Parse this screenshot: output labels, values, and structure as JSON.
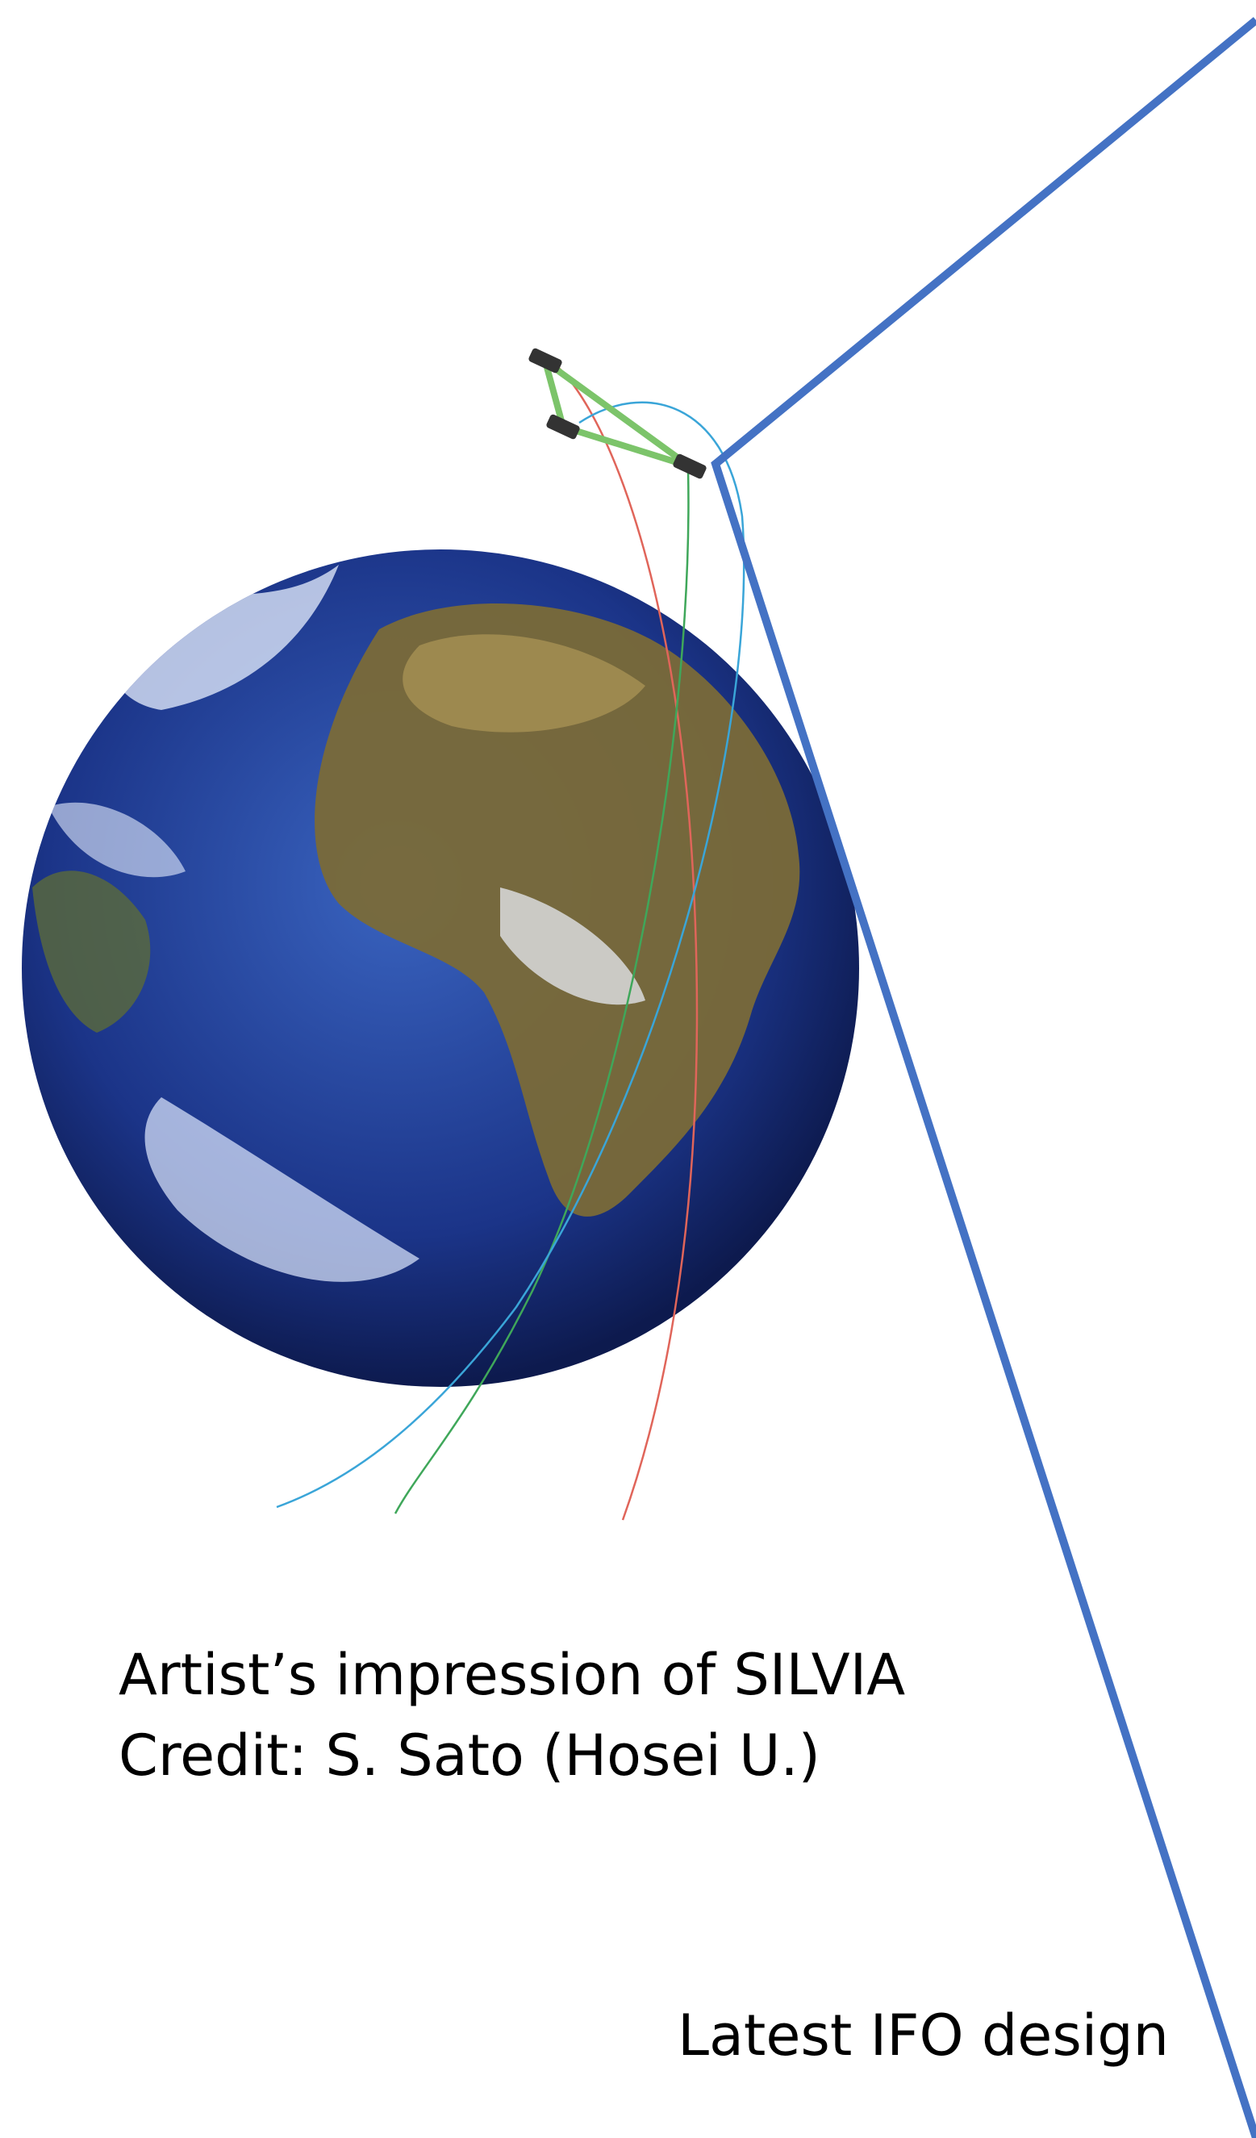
{
  "caption": {
    "line1": "Artist’s impression of SILVIA",
    "line2": "Credit: S. Sato (Hosei U.)"
  },
  "label": "Latest IFO design"
}
